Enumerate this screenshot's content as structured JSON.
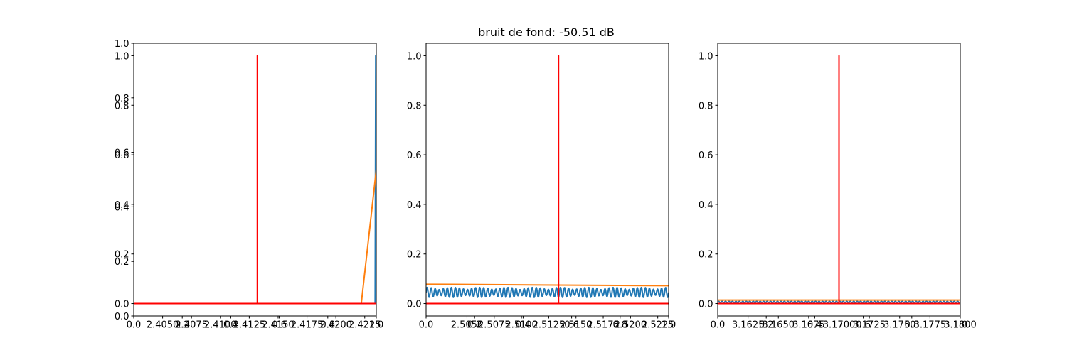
{
  "title": "bruit de fond: -50.51 dB",
  "colors": {
    "blue": "#1f77b4",
    "orange": "#ff7f0e",
    "red": "#ff0000",
    "axis": "#000000"
  },
  "chart_data": [
    {
      "type": "line",
      "xlim": [
        2.4025,
        2.4235
      ],
      "ylim": [
        -0.05,
        1.05
      ],
      "xticks": [
        {
          "v": 2.405,
          "label": "2.4050"
        },
        {
          "v": 2.4075,
          "label": "2.4075"
        },
        {
          "v": 2.41,
          "label": "2.4100"
        },
        {
          "v": 2.4125,
          "label": "2.4125"
        },
        {
          "v": 2.415,
          "label": "2.4150"
        },
        {
          "v": 2.4175,
          "label": "2.4175"
        },
        {
          "v": 2.42,
          "label": "2.4200"
        },
        {
          "v": 2.4225,
          "label": "2.4225"
        }
      ],
      "yticks": [
        {
          "v": 0.0,
          "label": "0.0"
        },
        {
          "v": 0.2,
          "label": "0.2"
        },
        {
          "v": 0.4,
          "label": "0.4"
        },
        {
          "v": 0.6,
          "label": "0.6"
        },
        {
          "v": 0.8,
          "label": "0.8"
        },
        {
          "v": 1.0,
          "label": "1.0"
        }
      ],
      "overlay_axis": {
        "ticks": [
          0.0,
          0.2,
          0.4,
          0.6,
          0.8,
          1.0
        ],
        "x_labels": [
          "0.0",
          "0.2",
          "0.4",
          "0.6",
          "0.8",
          "1.0"
        ],
        "y_labels": [
          "0.0",
          "0.2",
          "0.4",
          "0.6",
          "0.8",
          "1.0"
        ]
      },
      "series": [
        {
          "color": "blue",
          "x": [
            2.4025,
            2.4234,
            2.42345,
            2.4235
          ],
          "y": [
            0.0,
            0.0,
            1.0,
            0.9
          ]
        },
        {
          "color": "orange",
          "x": [
            2.4025,
            2.4222,
            2.4235
          ],
          "y": [
            0.0,
            0.0,
            0.54
          ]
        },
        {
          "color": "red",
          "x": [
            2.4025,
            2.4132,
            2.4132,
            2.4132,
            2.4235
          ],
          "y": [
            0.0,
            0.0,
            1.0,
            0.0,
            0.0
          ]
        }
      ]
    },
    {
      "type": "line",
      "xlim": [
        2.50125,
        2.5235
      ],
      "ylim": [
        -0.05,
        1.05
      ],
      "xticks": [
        {
          "v": 2.505,
          "label": "2.5050"
        },
        {
          "v": 2.5075,
          "label": "2.5075"
        },
        {
          "v": 2.51,
          "label": "2.5100"
        },
        {
          "v": 2.5125,
          "label": "2.5125"
        },
        {
          "v": 2.515,
          "label": "2.5150"
        },
        {
          "v": 2.5175,
          "label": "2.5175"
        },
        {
          "v": 2.52,
          "label": "2.5200"
        },
        {
          "v": 2.5225,
          "label": "2.5225"
        }
      ],
      "yticks": [
        {
          "v": 0.0,
          "label": "0.0"
        },
        {
          "v": 0.2,
          "label": "0.2"
        },
        {
          "v": 0.4,
          "label": "0.4"
        },
        {
          "v": 0.6,
          "label": "0.6"
        },
        {
          "v": 0.8,
          "label": "0.8"
        },
        {
          "v": 1.0,
          "label": "1.0"
        }
      ],
      "overlay_axis": {
        "ticks": [
          0.0,
          0.2,
          0.4,
          0.6,
          0.8,
          1.0
        ],
        "x_labels": [
          "0.0",
          "0.2",
          "0.4",
          "0.6",
          "0.8",
          "1.0"
        ],
        "y_labels": []
      },
      "series": [
        {
          "color": "blue",
          "oscillation": {
            "base": 0.045,
            "amp": 0.02,
            "cycles": 60,
            "beat_cycles": 9
          }
        },
        {
          "color": "orange",
          "x": [
            2.50125,
            2.5235
          ],
          "y": [
            0.078,
            0.072
          ]
        },
        {
          "color": "red",
          "x": [
            2.50125,
            2.5134,
            2.5134,
            2.5134,
            2.5235
          ],
          "y": [
            0.0,
            0.0,
            1.0,
            0.0,
            0.0
          ]
        }
      ]
    },
    {
      "type": "line",
      "xlim": [
        3.16,
        3.18
      ],
      "ylim": [
        -0.05,
        1.05
      ],
      "xticks": [
        {
          "v": 3.1625,
          "label": "3.1625"
        },
        {
          "v": 3.165,
          "label": "3.1650"
        },
        {
          "v": 3.1675,
          "label": "3.1675"
        },
        {
          "v": 3.17,
          "label": "3.1700"
        },
        {
          "v": 3.1725,
          "label": "3.1725"
        },
        {
          "v": 3.175,
          "label": "3.1750"
        },
        {
          "v": 3.1775,
          "label": "3.1775"
        },
        {
          "v": 3.18,
          "label": "3.1800"
        }
      ],
      "yticks": [
        {
          "v": 0.0,
          "label": "0.0"
        },
        {
          "v": 0.2,
          "label": "0.2"
        },
        {
          "v": 0.4,
          "label": "0.4"
        },
        {
          "v": 0.6,
          "label": "0.6"
        },
        {
          "v": 0.8,
          "label": "0.8"
        },
        {
          "v": 1.0,
          "label": "1.0"
        }
      ],
      "overlay_axis": {
        "ticks": [
          0.0,
          0.2,
          0.4,
          0.6,
          0.8,
          1.0
        ],
        "x_labels": [
          "0.0",
          "0.2",
          "0.4",
          "0.6",
          "0.8",
          "1.0"
        ],
        "y_labels": []
      },
      "series": [
        {
          "color": "blue",
          "oscillation": {
            "base": 0.006,
            "amp": 0.003,
            "cycles": 70,
            "beat_cycles": 0
          }
        },
        {
          "color": "orange",
          "x": [
            3.16,
            3.18
          ],
          "y": [
            0.014,
            0.014
          ]
        },
        {
          "color": "red",
          "x": [
            3.16,
            3.17,
            3.17,
            3.17,
            3.18
          ],
          "y": [
            0.0,
            0.0,
            1.0,
            0.0,
            0.0
          ]
        }
      ]
    }
  ]
}
